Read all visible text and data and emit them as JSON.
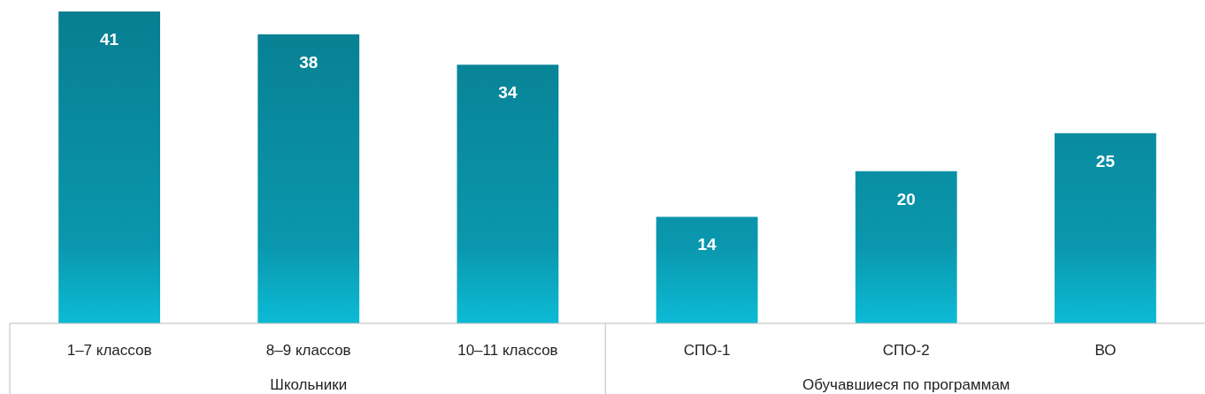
{
  "chart_data": {
    "type": "bar",
    "categories": [
      "1–7 классов",
      "8–9 классов",
      "10–11 классов",
      "СПО-1",
      "СПО-2",
      "ВО"
    ],
    "values": [
      41,
      38,
      34,
      14,
      20,
      25
    ],
    "color": "#0a97ad",
    "data_labels": true,
    "annotations": [
      "Школьники",
      "Обучавшиеся по программам"
    ]
  }
}
